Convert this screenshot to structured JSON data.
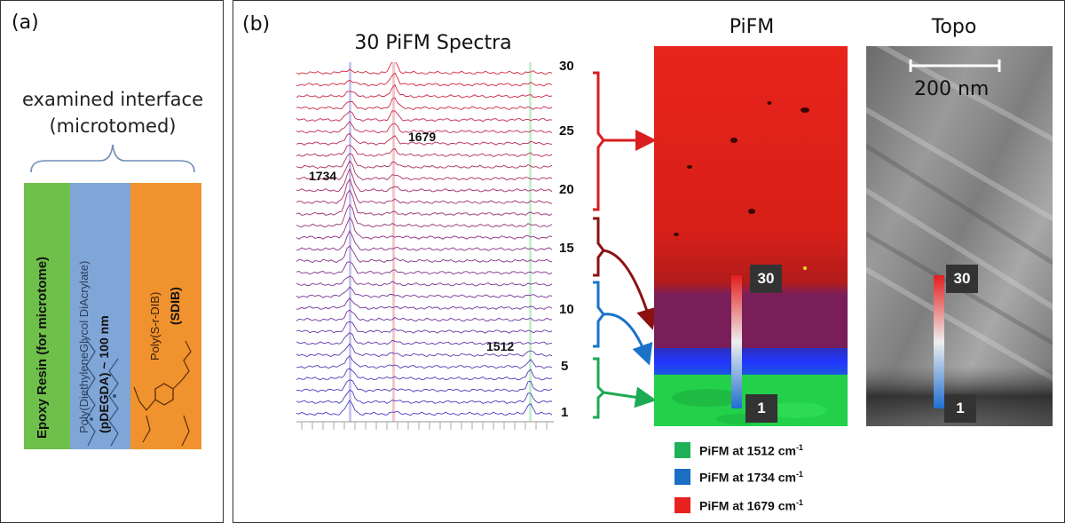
{
  "panel_a": {
    "label": "(a)",
    "caption_line1": "examined interface",
    "caption_line2": "(microtomed)",
    "layers": [
      {
        "text": "Epoxy Resin (for microtome)",
        "color": "#6fc04a"
      },
      {
        "text_line1": "Poly(DiethyleneGlycol DiAcrylate)",
        "text_line2": "(pDEGDA) ~ 100 nm",
        "color": "#7fa6d6"
      },
      {
        "text_line1": "Poly(S-r-DIB)",
        "text_line2": "(SDIB)",
        "color": "#f0922e"
      }
    ]
  },
  "panel_b": {
    "label": "(b)",
    "spectra_title": "30 PiFM Spectra",
    "pifm_title": "PiFM",
    "topo_title": "Topo",
    "scale_bar": "200 nm",
    "spectrum_numbers": [
      "30",
      "25",
      "20",
      "15",
      "10",
      "5",
      "1"
    ],
    "peaks": {
      "p1734": "1734",
      "p1679": "1679",
      "p1512": "1512"
    },
    "colorbar_top": "30",
    "colorbar_bottom": "1",
    "legend": [
      {
        "text": "PiFM at 1512 cm",
        "sup": "-1",
        "color": "#1fb158"
      },
      {
        "text": "PiFM at 1734 cm",
        "sup": "-1",
        "color": "#1a6fc2"
      },
      {
        "text": "PiFM at 1679 cm",
        "sup": "-1",
        "color": "#e8231f"
      }
    ]
  }
}
